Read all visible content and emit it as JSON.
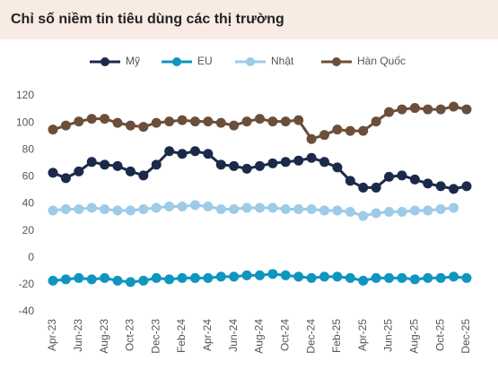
{
  "chart_data": {
    "type": "line",
    "title": "Chỉ số niềm tin tiêu dùng các thị trường",
    "categories": [
      "Apr-23",
      null,
      "Jun-23",
      null,
      "Aug-23",
      null,
      "Oct-23",
      null,
      "Dec-23",
      null,
      "Feb-24",
      null,
      "Apr-24",
      null,
      "Jun-24",
      null,
      "Aug-24",
      null,
      "Oct-24",
      null,
      "Dec-24",
      null,
      "Feb-25",
      null,
      "Apr-25",
      null,
      "Jun-25",
      null,
      "Aug-25",
      null,
      "Oct-25",
      null,
      "Dec-25"
    ],
    "series": [
      {
        "name": "Mỹ",
        "color": "#1b2a4a",
        "values": [
          63,
          59,
          64,
          71,
          69,
          68,
          64,
          61,
          69,
          79,
          77,
          79,
          77,
          69,
          68,
          66,
          68,
          70,
          71,
          72,
          74,
          71,
          67,
          57,
          52,
          52,
          60,
          61,
          58,
          55,
          53,
          51,
          53
        ]
      },
      {
        "name": "EU",
        "color": "#0e96c0",
        "values": [
          -17,
          -16,
          -15,
          -16,
          -15,
          -17,
          -18,
          -17,
          -15,
          -16,
          -15,
          -15,
          -15,
          -14,
          -14,
          -13,
          -13,
          -12,
          -13,
          -14,
          -15,
          -14,
          -14,
          -15,
          -17,
          -15,
          -15,
          -15,
          -16,
          -15,
          -15,
          -14,
          -15
        ]
      },
      {
        "name": "Nhật",
        "color": "#9dcbe8",
        "values": [
          35,
          36,
          36,
          37,
          36,
          35,
          35,
          36,
          37,
          38,
          38,
          39,
          38,
          36,
          36,
          37,
          37,
          37,
          36,
          36,
          36,
          35,
          35,
          34,
          31,
          33,
          34,
          34,
          35,
          35,
          36,
          37,
          null
        ]
      },
      {
        "name": "Hàn Quốc",
        "color": "#6b4f3a",
        "values": [
          95,
          98,
          101,
          103,
          103,
          100,
          98,
          97,
          100,
          101,
          102,
          101,
          101,
          100,
          98,
          101,
          103,
          101,
          101,
          102,
          88,
          91,
          95,
          94,
          94,
          101,
          108,
          110,
          111,
          110,
          110,
          112,
          110
        ]
      }
    ],
    "ylim": [
      -40,
      120
    ],
    "yticks": [
      -40,
      -20,
      0,
      20,
      40,
      60,
      80,
      100,
      120
    ],
    "grid": false
  }
}
